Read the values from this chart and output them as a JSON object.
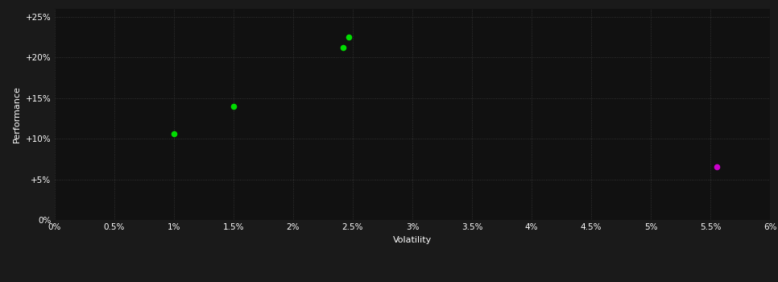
{
  "background_color": "#1a1a1a",
  "plot_bg_color": "#111111",
  "grid_color": "#3a3a3a",
  "text_color": "#ffffff",
  "green_points": [
    [
      1.0,
      10.6
    ],
    [
      1.5,
      14.0
    ],
    [
      2.42,
      21.2
    ],
    [
      2.47,
      22.5
    ]
  ],
  "magenta_points": [
    [
      5.55,
      6.5
    ]
  ],
  "xlim": [
    0.0,
    6.0
  ],
  "ylim": [
    0.0,
    26.0
  ],
  "xticks": [
    0.0,
    0.5,
    1.0,
    1.5,
    2.0,
    2.5,
    3.0,
    3.5,
    4.0,
    4.5,
    5.0,
    5.5,
    6.0
  ],
  "yticks": [
    0,
    5,
    10,
    15,
    20,
    25
  ],
  "xlabel": "Volatility",
  "ylabel": "Performance",
  "marker_size": 30,
  "green_color": "#00dd00",
  "magenta_color": "#cc00cc"
}
